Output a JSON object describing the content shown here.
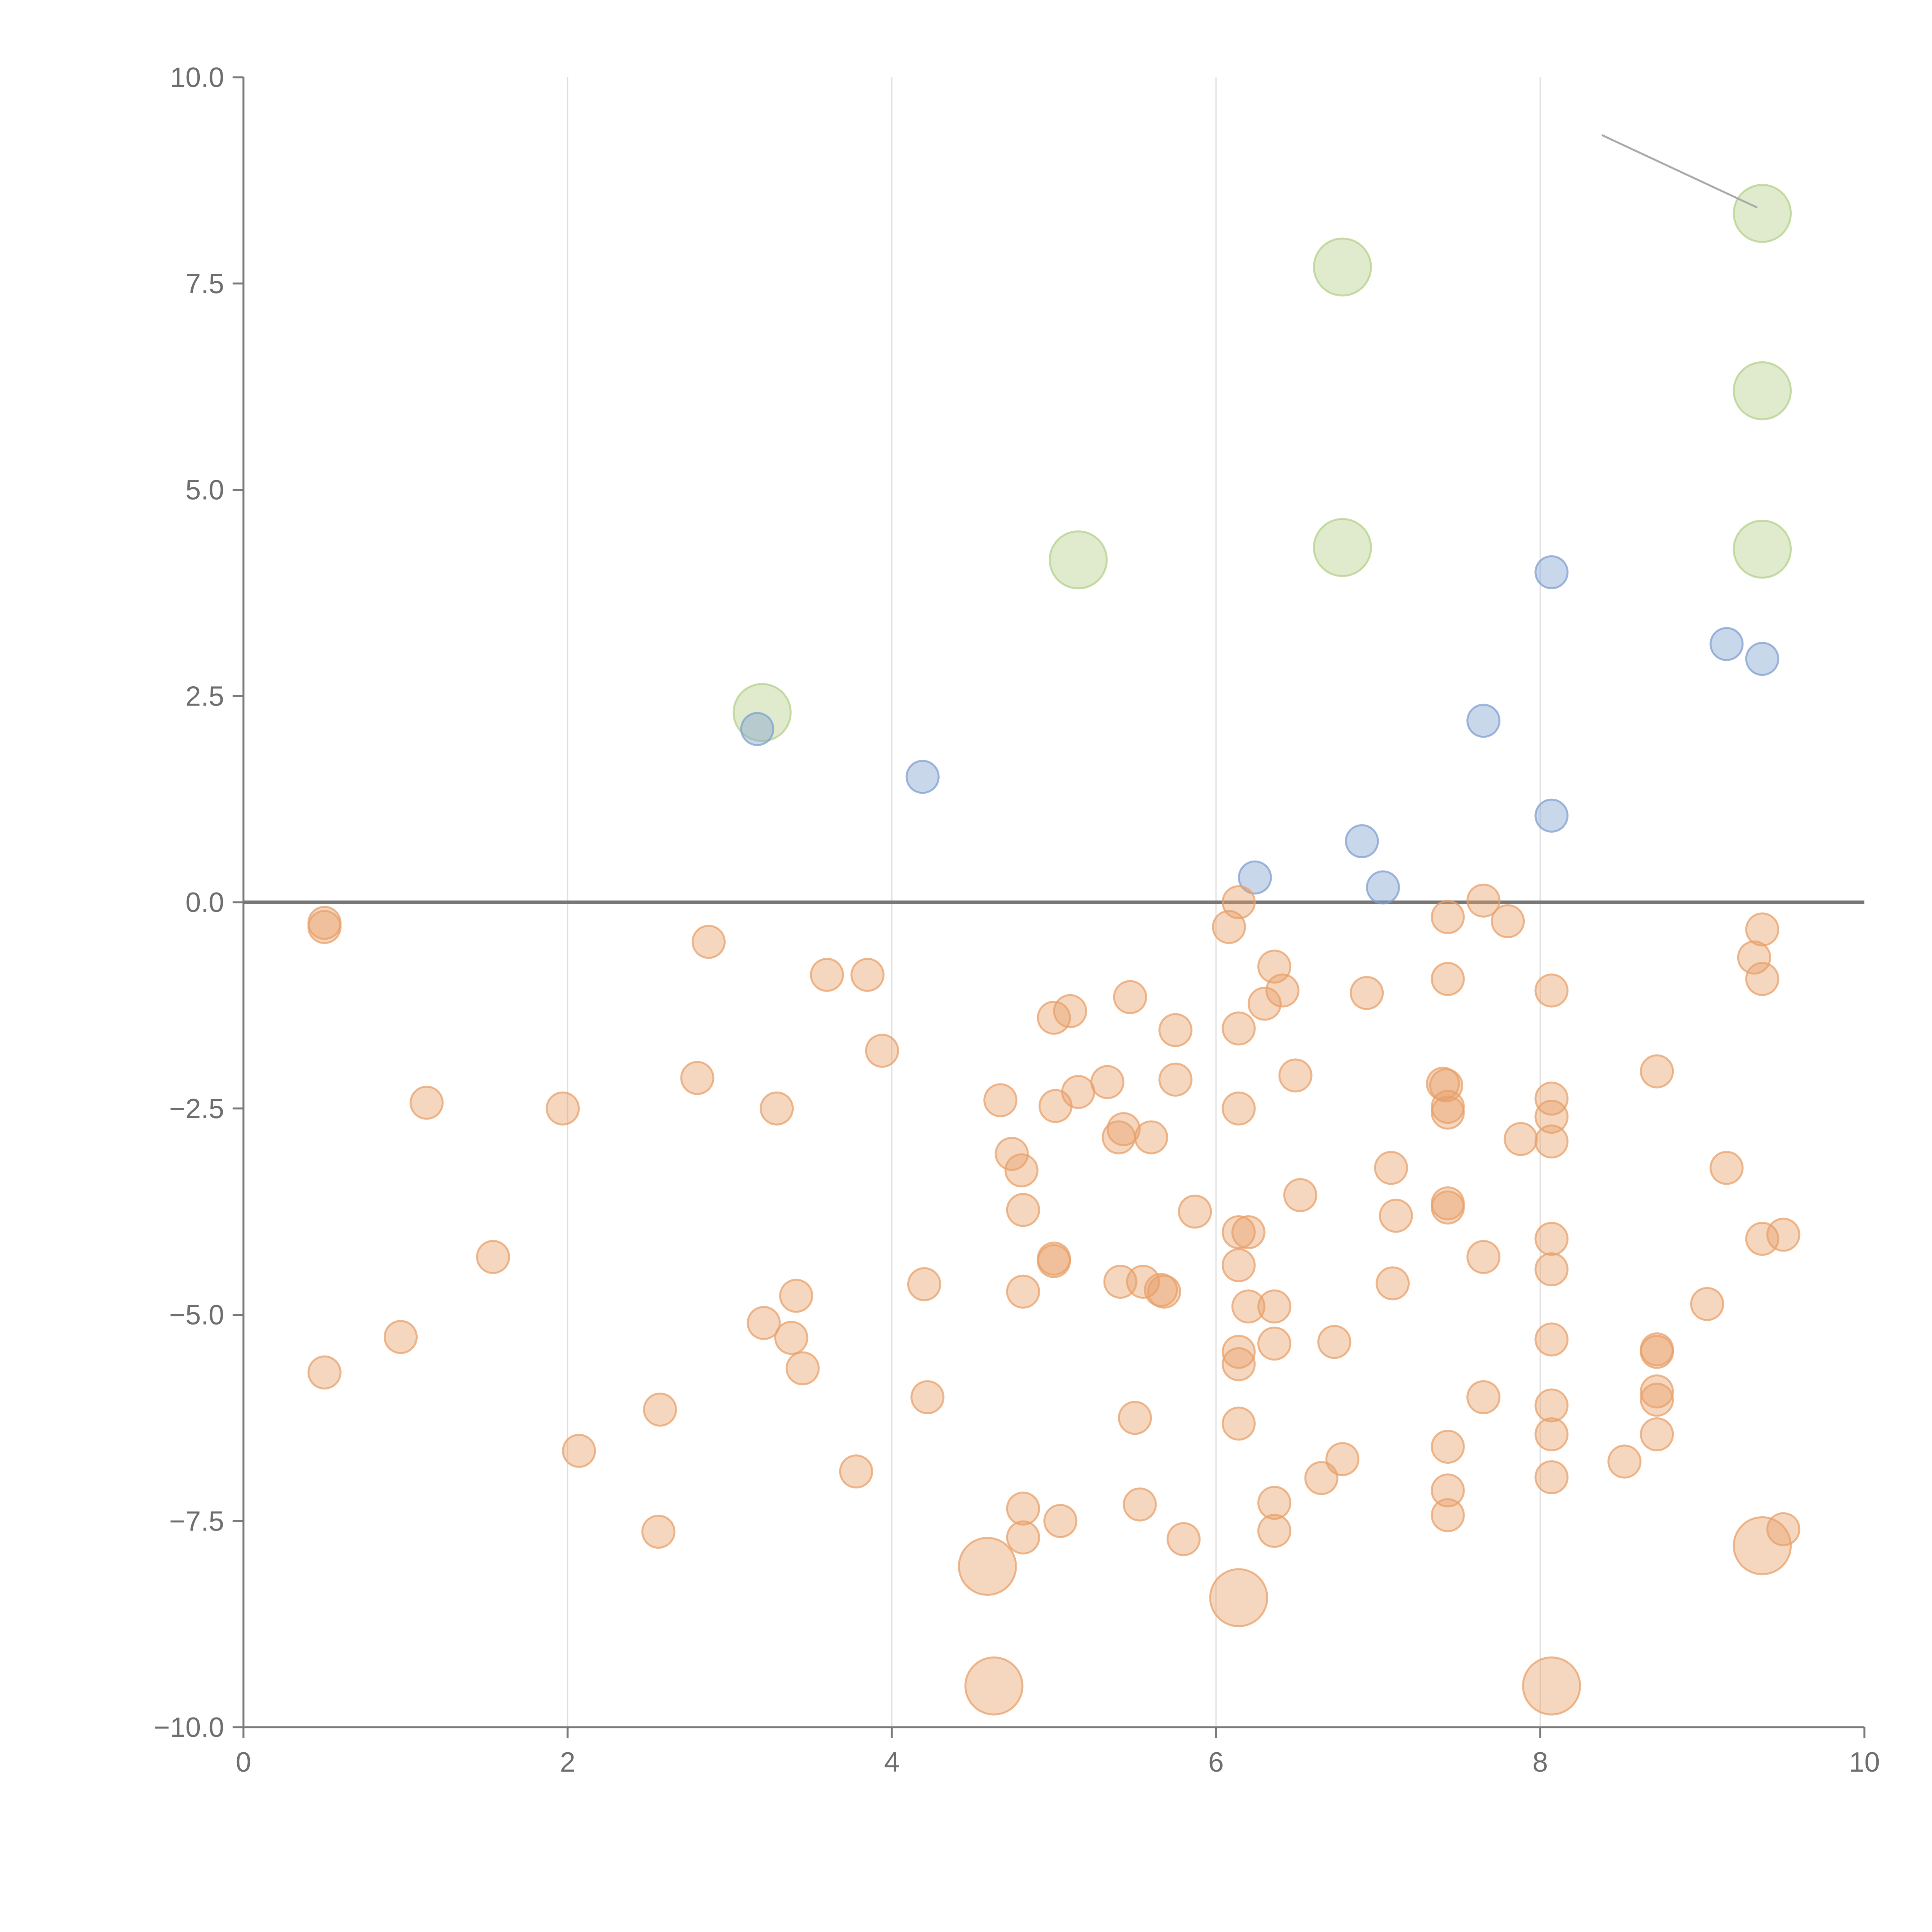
{
  "chart_data": {
    "type": "scatter",
    "title": "",
    "xlabel": "",
    "ylabel": "",
    "xlim": [
      0,
      10
    ],
    "ylim": [
      -10,
      10
    ],
    "x_ticks": [
      0,
      2,
      4,
      6,
      8,
      10
    ],
    "x_tick_labels": [
      "0",
      "2",
      "4",
      "6",
      "8",
      "10"
    ],
    "y_ticks": [
      -10,
      -7.5,
      -5,
      -2.5,
      0,
      2.5,
      5,
      7.5,
      10
    ],
    "y_tick_labels": [
      "−10.0",
      "−7.5",
      "−5.0",
      "−2.5",
      "0.0",
      "2.5",
      "5.0",
      "7.5",
      "10.0"
    ],
    "grid": "vertical",
    "reference_line_y": 0,
    "colors": {
      "orange": "#e8a06a",
      "blue": "#7f9fd0",
      "green": "#b4d08a",
      "axis": "#7a7a7a",
      "grid": "#dddddd"
    },
    "series": [
      {
        "name": "green (large)",
        "color": "#b4d08a",
        "size": 3.2,
        "points": [
          [
            3.2,
            2.3
          ],
          [
            5.15,
            4.15
          ],
          [
            6.78,
            7.7
          ],
          [
            6.78,
            4.3
          ],
          [
            9.37,
            8.35
          ],
          [
            9.37,
            6.2
          ],
          [
            9.37,
            4.28
          ]
        ]
      },
      {
        "name": "blue (small)",
        "color": "#7f9fd0",
        "size": 1.8,
        "points": [
          [
            3.17,
            2.1
          ],
          [
            4.19,
            1.52
          ],
          [
            6.24,
            0.3
          ],
          [
            6.9,
            0.74
          ],
          [
            7.03,
            0.18
          ],
          [
            7.65,
            2.2
          ],
          [
            8.07,
            4.0
          ],
          [
            8.07,
            1.05
          ],
          [
            9.15,
            3.13
          ],
          [
            9.37,
            2.95
          ]
        ]
      },
      {
        "name": "orange (small)",
        "color": "#e8a06a",
        "size": 1.8,
        "points": [
          [
            0.5,
            -0.25
          ],
          [
            0.5,
            -0.3
          ],
          [
            0.5,
            -5.7
          ],
          [
            0.97,
            -5.27
          ],
          [
            1.13,
            -2.43
          ],
          [
            1.54,
            -4.3
          ],
          [
            1.97,
            -2.5
          ],
          [
            2.07,
            -6.65
          ],
          [
            2.57,
            -6.15
          ],
          [
            2.56,
            -7.63
          ],
          [
            2.8,
            -2.13
          ],
          [
            2.87,
            -0.48
          ],
          [
            3.21,
            -5.1
          ],
          [
            3.29,
            -2.5
          ],
          [
            3.38,
            -5.28
          ],
          [
            3.41,
            -4.77
          ],
          [
            3.45,
            -5.65
          ],
          [
            3.6,
            -0.88
          ],
          [
            3.78,
            -6.9
          ],
          [
            3.85,
            -0.88
          ],
          [
            3.94,
            -1.8
          ],
          [
            4.2,
            -4.63
          ],
          [
            4.22,
            -6.0
          ],
          [
            4.67,
            -2.4
          ],
          [
            4.74,
            -3.05
          ],
          [
            4.8,
            -3.25
          ],
          [
            4.81,
            -3.73
          ],
          [
            4.81,
            -4.72
          ],
          [
            4.81,
            -7.35
          ],
          [
            4.81,
            -7.7
          ],
          [
            5.0,
            -1.4
          ],
          [
            5.0,
            -4.32
          ],
          [
            5.0,
            -4.35
          ],
          [
            5.01,
            -2.47
          ],
          [
            5.04,
            -7.5
          ],
          [
            5.1,
            -1.32
          ],
          [
            5.15,
            -2.3
          ],
          [
            5.33,
            -2.18
          ],
          [
            5.4,
            -2.85
          ],
          [
            5.41,
            -4.6
          ],
          [
            5.43,
            -2.75
          ],
          [
            5.47,
            -1.15
          ],
          [
            5.5,
            -6.25
          ],
          [
            5.53,
            -7.3
          ],
          [
            5.55,
            -4.6
          ],
          [
            5.6,
            -2.85
          ],
          [
            5.66,
            -4.7
          ],
          [
            5.68,
            -4.72
          ],
          [
            5.75,
            -1.55
          ],
          [
            5.75,
            -2.15
          ],
          [
            5.8,
            -7.72
          ],
          [
            5.87,
            -3.75
          ],
          [
            6.08,
            -0.3
          ],
          [
            6.14,
            0.0
          ],
          [
            6.14,
            -1.53
          ],
          [
            6.14,
            -2.5
          ],
          [
            6.14,
            -4.0
          ],
          [
            6.14,
            -4.4
          ],
          [
            6.14,
            -5.45
          ],
          [
            6.14,
            -5.6
          ],
          [
            6.14,
            -6.32
          ],
          [
            6.2,
            -4.9
          ],
          [
            6.2,
            -4.0
          ],
          [
            6.3,
            -1.23
          ],
          [
            6.36,
            -0.78
          ],
          [
            6.36,
            -4.9
          ],
          [
            6.36,
            -5.35
          ],
          [
            6.36,
            -7.28
          ],
          [
            6.36,
            -7.62
          ],
          [
            6.41,
            -1.07
          ],
          [
            6.49,
            -2.1
          ],
          [
            6.52,
            -3.55
          ],
          [
            6.65,
            -6.98
          ],
          [
            6.73,
            -5.33
          ],
          [
            6.78,
            -6.75
          ],
          [
            6.93,
            -1.1
          ],
          [
            7.08,
            -3.22
          ],
          [
            7.09,
            -4.62
          ],
          [
            7.11,
            -3.8
          ],
          [
            7.4,
            -2.2
          ],
          [
            7.42,
            -2.22
          ],
          [
            7.43,
            -0.18
          ],
          [
            7.43,
            -0.93
          ],
          [
            7.43,
            -2.48
          ],
          [
            7.43,
            -2.55
          ],
          [
            7.43,
            -3.65
          ],
          [
            7.43,
            -3.7
          ],
          [
            7.43,
            -6.6
          ],
          [
            7.43,
            -7.13
          ],
          [
            7.43,
            -7.43
          ],
          [
            7.65,
            0.02
          ],
          [
            7.65,
            -4.3
          ],
          [
            7.65,
            -6.0
          ],
          [
            7.8,
            -0.23
          ],
          [
            7.88,
            -2.87
          ],
          [
            8.07,
            -1.07
          ],
          [
            8.07,
            -2.38
          ],
          [
            8.07,
            -2.6
          ],
          [
            8.07,
            -2.9
          ],
          [
            8.07,
            -4.08
          ],
          [
            8.07,
            -4.45
          ],
          [
            8.07,
            -5.3
          ],
          [
            8.07,
            -6.1
          ],
          [
            8.07,
            -6.45
          ],
          [
            8.07,
            -6.97
          ],
          [
            8.52,
            -6.78
          ],
          [
            8.72,
            -2.05
          ],
          [
            8.72,
            -5.42
          ],
          [
            8.72,
            -5.45
          ],
          [
            8.72,
            -5.93
          ],
          [
            8.72,
            -6.03
          ],
          [
            8.72,
            -6.45
          ],
          [
            9.03,
            -4.87
          ],
          [
            9.15,
            -3.22
          ],
          [
            9.32,
            -0.67
          ],
          [
            9.37,
            -0.33
          ],
          [
            9.37,
            -0.93
          ],
          [
            9.37,
            -4.08
          ],
          [
            9.5,
            -4.03
          ],
          [
            9.5,
            -7.6
          ]
        ]
      },
      {
        "name": "orange (large)",
        "color": "#e8a06a",
        "size": 3.2,
        "points": [
          [
            4.59,
            -8.05
          ],
          [
            4.63,
            -9.5
          ],
          [
            6.14,
            -8.43
          ],
          [
            8.07,
            -9.5
          ],
          [
            9.37,
            -7.8
          ]
        ]
      }
    ],
    "label_leaders": [
      [
        [
          8.38,
          9.3
        ],
        [
          9.34,
          8.42
        ]
      ]
    ]
  }
}
